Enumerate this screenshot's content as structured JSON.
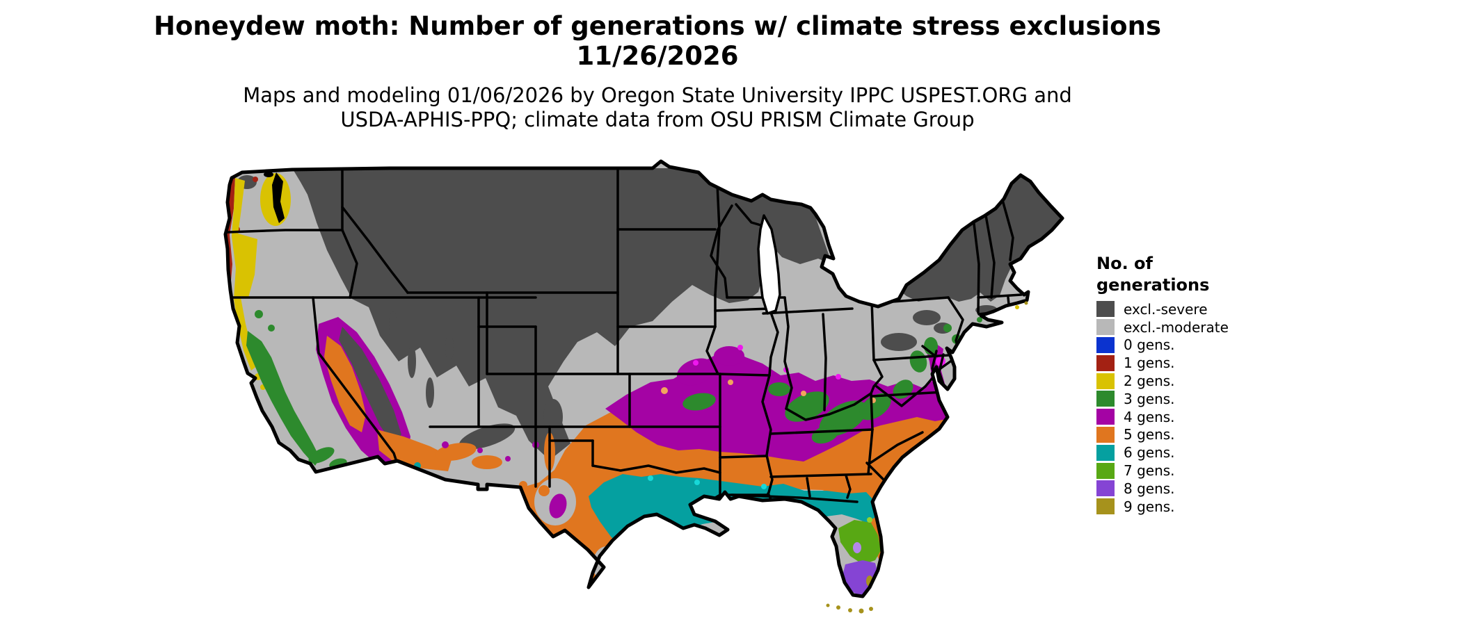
{
  "header": {
    "title_line1": "Honeydew moth: Number of generations w/ climate stress exclusions",
    "title_line2": "11/26/2026",
    "subtitle_line1": "Maps and modeling 01/06/2026 by Oregon State University IPPC USPEST.ORG and",
    "subtitle_line2": "USDA-APHIS-PPQ; climate data from OSU PRISM Climate Group"
  },
  "legend": {
    "title_line1": "No. of",
    "title_line2": "generations",
    "items": [
      {
        "key": "excl_severe",
        "label": "excl.-severe",
        "color": "#4d4d4d"
      },
      {
        "key": "excl_moderate",
        "label": "excl.-moderate",
        "color": "#b8b8b8"
      },
      {
        "key": "g0",
        "label": "0 gens.",
        "color": "#0b33cf"
      },
      {
        "key": "g1",
        "label": "1 gens.",
        "color": "#a32113"
      },
      {
        "key": "g2",
        "label": "2 gens.",
        "color": "#d9c202"
      },
      {
        "key": "g3",
        "label": "3 gens.",
        "color": "#2d8a2d"
      },
      {
        "key": "g4",
        "label": "4 gens.",
        "color": "#a403a4"
      },
      {
        "key": "g5",
        "label": "5 gens.",
        "color": "#e0761f"
      },
      {
        "key": "g6",
        "label": "6 gens.",
        "color": "#05a0a0"
      },
      {
        "key": "g7",
        "label": "7 gens.",
        "color": "#58a814"
      },
      {
        "key": "g8",
        "label": "8 gens.",
        "color": "#8544d4"
      },
      {
        "key": "g9",
        "label": "9 gens.",
        "color": "#a6921c"
      }
    ],
    "fringe_colors": [
      {
        "key": "fr_magenta",
        "color": "#ee18ee"
      },
      {
        "key": "fr_orange",
        "color": "#f2a55e"
      },
      {
        "key": "fr_cyan",
        "color": "#17d8d8"
      },
      {
        "key": "fr_lime",
        "color": "#90d42e"
      },
      {
        "key": "fr_purple",
        "color": "#b487ea"
      }
    ]
  },
  "chart_data": {
    "type": "choropleth_map",
    "region": "Contiguous United States with state boundaries",
    "variable": "Honeydew moth - number of generations with climate stress exclusions",
    "map_date": "11/26/2026",
    "classes": [
      "excl.-severe",
      "excl.-moderate",
      "0 gens.",
      "1 gens.",
      "2 gens.",
      "3 gens.",
      "4 gens.",
      "5 gens.",
      "6 gens.",
      "7 gens.",
      "8 gens.",
      "9 gens."
    ],
    "class_colors": [
      "#4d4d4d",
      "#b8b8b8",
      "#0b33cf",
      "#a32113",
      "#d9c202",
      "#2d8a2d",
      "#a403a4",
      "#e0761f",
      "#05a0a0",
      "#58a814",
      "#8544d4",
      "#a6921c"
    ],
    "visible_pattern": [
      "Northern tier (WA Cascades, MT, ID, WY, Dakotas, MN, WI, upper MI, northern New England) = excl.-severe dark gray",
      "Central latitudes (Great Basin, NE, KS, IA, MO, OH valley, PA, NY, coastal New England) = excl.-moderate light gray",
      "1-2 gens. red and yellow stripes along WA/OR coast and Willamette Valley; 3 gens. green along CA coast ranges and Appalachians",
      "4 gens. magenta band from OK/KS across TN/KY south to Virginia and Delmarva",
      "5 gens. orange band across central TX, the Deep South and Carolina coasts; also CA Central Valley and SW deserts",
      "6 gens. teal band across south TX hill country, LA, gulf coast and north FL",
      "7 gens. green along TX coastal plain and central FL; 8 gens. purple at south TX tip and south FL; 9 gens. olive in the FL Keys",
      "legend swatch 0 gens. blue not visibly mapped"
    ],
    "legend_position": "right"
  }
}
